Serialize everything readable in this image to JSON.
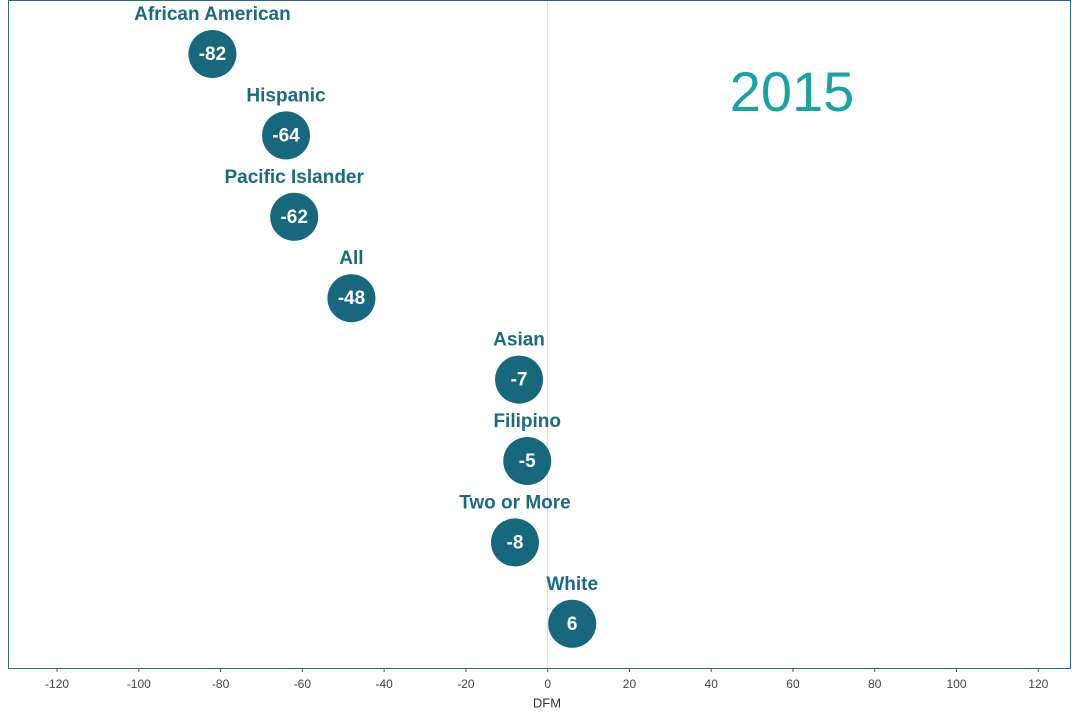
{
  "chart_data": {
    "type": "dot",
    "annotation": "2015",
    "x_label": "DFM",
    "categories": [
      "African American",
      "Hispanic",
      "Pacific Islander",
      "All",
      "Asian",
      "Filipino",
      "Two or More",
      "White"
    ],
    "values": [
      -82,
      -64,
      -62,
      -48,
      -7,
      -5,
      -8,
      6
    ],
    "color": "#17677d",
    "annotation_color": "#1aa3a3",
    "xlim": [
      -132,
      128
    ],
    "xticks": [
      -120,
      -100,
      -80,
      -60,
      -40,
      -20,
      0,
      20,
      40,
      60,
      80,
      100,
      120
    ],
    "vline": 0,
    "grid": false
  }
}
